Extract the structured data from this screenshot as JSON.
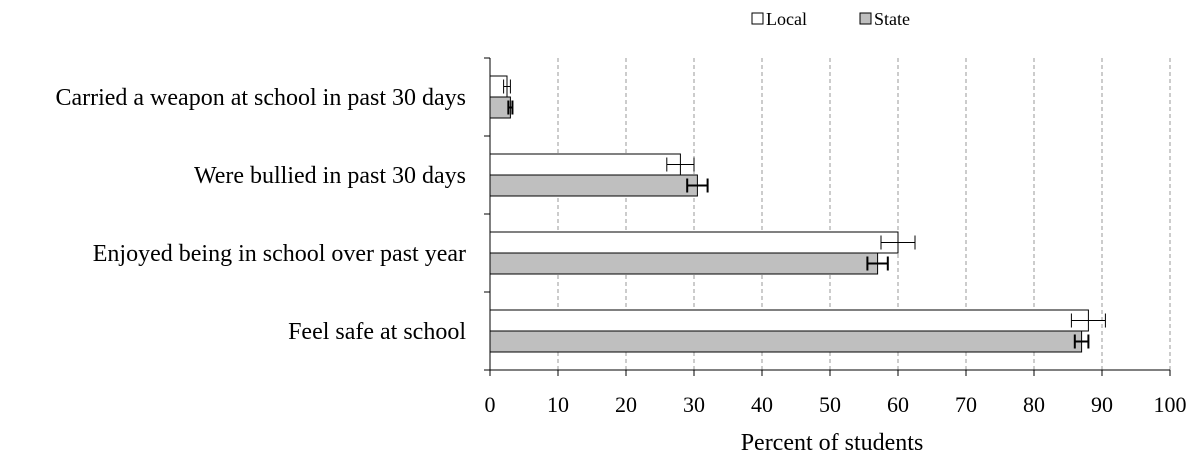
{
  "chart_data": {
    "type": "bar",
    "orientation": "horizontal",
    "categories": [
      "Carried a weapon at school in past 30 days",
      "Were bullied in past 30 days",
      "Enjoyed being in school over past year",
      "Feel safe at school"
    ],
    "series": [
      {
        "name": "Local",
        "color": "#ffffff",
        "values": [
          2.5,
          28,
          60,
          88
        ],
        "error": [
          0.5,
          2,
          2.5,
          2.5
        ]
      },
      {
        "name": "State",
        "color": "#bfbfbf",
        "values": [
          3,
          30.5,
          57,
          87
        ],
        "error": [
          0.3,
          1.5,
          1.5,
          1
        ]
      }
    ],
    "xlabel": "Percent of students",
    "ylabel": "",
    "xlim": [
      0,
      100
    ],
    "xticks": [
      0,
      10,
      20,
      30,
      40,
      50,
      60,
      70,
      80,
      90,
      100
    ],
    "grid": "vertical dashed",
    "legend_position": "top"
  }
}
